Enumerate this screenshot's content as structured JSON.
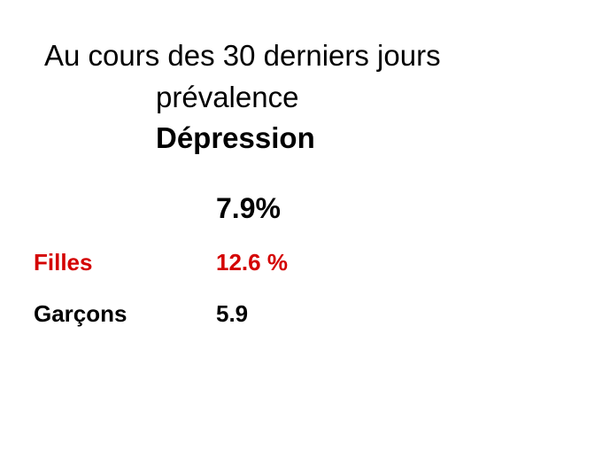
{
  "slide": {
    "title_line1": "Au cours des 30 derniers jours",
    "title_line2": "prévalence",
    "title_line3": "Dépression",
    "overall": "7.9%",
    "rows": [
      {
        "label": "Filles",
        "value": "12.6 %"
      },
      {
        "label": "Garçons",
        "value": "5.9"
      }
    ]
  }
}
